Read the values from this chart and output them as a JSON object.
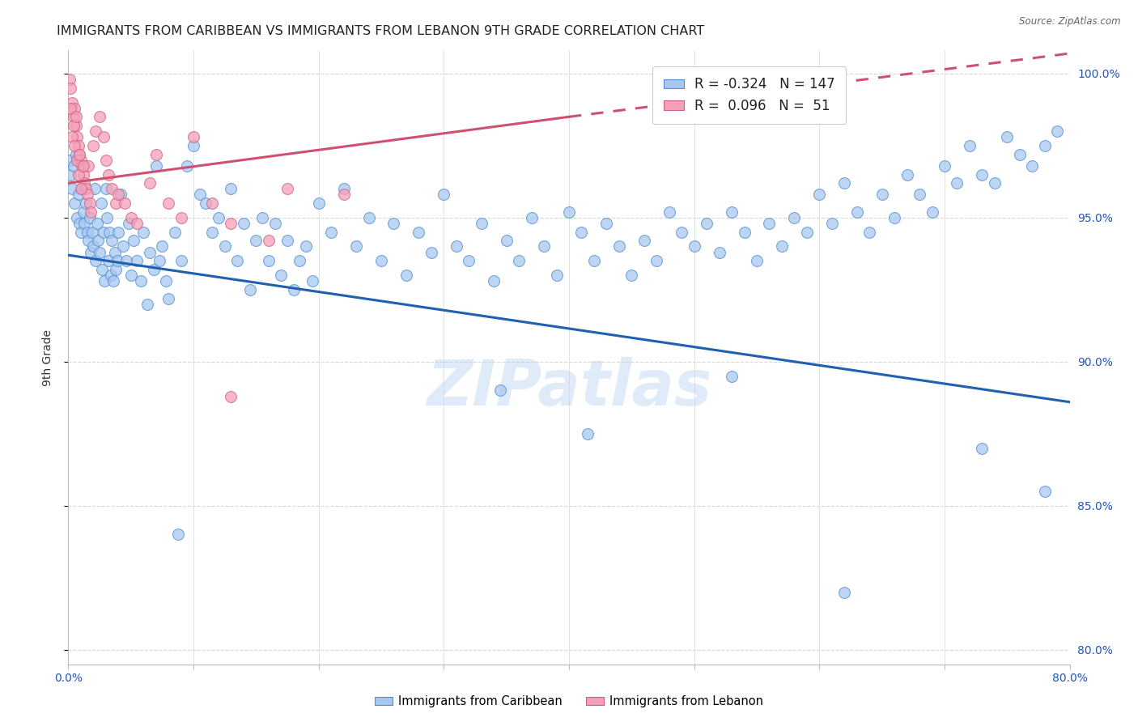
{
  "title": "IMMIGRANTS FROM CARIBBEAN VS IMMIGRANTS FROM LEBANON 9TH GRADE CORRELATION CHART",
  "source": "Source: ZipAtlas.com",
  "ylabel": "9th Grade",
  "xlim": [
    0.0,
    0.8
  ],
  "ylim": [
    0.795,
    1.008
  ],
  "yticks": [
    0.8,
    0.85,
    0.9,
    0.95,
    1.0
  ],
  "yticklabels": [
    "80.0%",
    "85.0%",
    "90.0%",
    "95.0%",
    "100.0%"
  ],
  "legend_r_blue": "-0.324",
  "legend_n_blue": "147",
  "legend_r_pink": "0.096",
  "legend_n_pink": "51",
  "blue_color": "#a8c8f0",
  "pink_color": "#f4a0b8",
  "blue_edge_color": "#5090d0",
  "pink_edge_color": "#d06080",
  "blue_line_color": "#2060b0",
  "pink_line_color": "#d05070",
  "watermark": "ZIPatlas",
  "blue_scatter_x": [
    0.001,
    0.002,
    0.003,
    0.004,
    0.005,
    0.006,
    0.007,
    0.008,
    0.009,
    0.01,
    0.011,
    0.012,
    0.013,
    0.014,
    0.015,
    0.016,
    0.017,
    0.018,
    0.019,
    0.02,
    0.021,
    0.022,
    0.023,
    0.024,
    0.025,
    0.026,
    0.027,
    0.028,
    0.029,
    0.03,
    0.031,
    0.032,
    0.033,
    0.034,
    0.035,
    0.036,
    0.037,
    0.038,
    0.039,
    0.04,
    0.042,
    0.044,
    0.046,
    0.048,
    0.05,
    0.052,
    0.055,
    0.058,
    0.06,
    0.063,
    0.065,
    0.068,
    0.07,
    0.073,
    0.075,
    0.078,
    0.08,
    0.085,
    0.09,
    0.095,
    0.1,
    0.105,
    0.11,
    0.115,
    0.12,
    0.125,
    0.13,
    0.135,
    0.14,
    0.145,
    0.15,
    0.155,
    0.16,
    0.165,
    0.17,
    0.175,
    0.18,
    0.185,
    0.19,
    0.195,
    0.2,
    0.21,
    0.22,
    0.23,
    0.24,
    0.25,
    0.26,
    0.27,
    0.28,
    0.29,
    0.3,
    0.31,
    0.32,
    0.33,
    0.34,
    0.35,
    0.36,
    0.37,
    0.38,
    0.39,
    0.4,
    0.41,
    0.42,
    0.43,
    0.44,
    0.45,
    0.46,
    0.47,
    0.48,
    0.49,
    0.5,
    0.51,
    0.52,
    0.53,
    0.54,
    0.55,
    0.56,
    0.57,
    0.58,
    0.59,
    0.6,
    0.61,
    0.62,
    0.63,
    0.64,
    0.65,
    0.66,
    0.67,
    0.68,
    0.69,
    0.7,
    0.71,
    0.72,
    0.73,
    0.74,
    0.75,
    0.76,
    0.77,
    0.78,
    0.79,
    0.345,
    0.53,
    0.62,
    0.73,
    0.78,
    0.415,
    0.088
  ],
  "blue_scatter_y": [
    0.97,
    0.965,
    0.96,
    0.968,
    0.955,
    0.972,
    0.95,
    0.958,
    0.948,
    0.945,
    0.96,
    0.952,
    0.948,
    0.955,
    0.945,
    0.942,
    0.95,
    0.938,
    0.945,
    0.94,
    0.96,
    0.935,
    0.948,
    0.942,
    0.938,
    0.955,
    0.932,
    0.945,
    0.928,
    0.96,
    0.95,
    0.935,
    0.945,
    0.93,
    0.942,
    0.928,
    0.938,
    0.932,
    0.935,
    0.945,
    0.958,
    0.94,
    0.935,
    0.948,
    0.93,
    0.942,
    0.935,
    0.928,
    0.945,
    0.92,
    0.938,
    0.932,
    0.968,
    0.935,
    0.94,
    0.928,
    0.922,
    0.945,
    0.935,
    0.968,
    0.975,
    0.958,
    0.955,
    0.945,
    0.95,
    0.94,
    0.96,
    0.935,
    0.948,
    0.925,
    0.942,
    0.95,
    0.935,
    0.948,
    0.93,
    0.942,
    0.925,
    0.935,
    0.94,
    0.928,
    0.955,
    0.945,
    0.96,
    0.94,
    0.95,
    0.935,
    0.948,
    0.93,
    0.945,
    0.938,
    0.958,
    0.94,
    0.935,
    0.948,
    0.928,
    0.942,
    0.935,
    0.95,
    0.94,
    0.93,
    0.952,
    0.945,
    0.935,
    0.948,
    0.94,
    0.93,
    0.942,
    0.935,
    0.952,
    0.945,
    0.94,
    0.948,
    0.938,
    0.952,
    0.945,
    0.935,
    0.948,
    0.94,
    0.95,
    0.945,
    0.958,
    0.948,
    0.962,
    0.952,
    0.945,
    0.958,
    0.95,
    0.965,
    0.958,
    0.952,
    0.968,
    0.962,
    0.975,
    0.965,
    0.962,
    0.978,
    0.972,
    0.968,
    0.975,
    0.98,
    0.89,
    0.895,
    0.82,
    0.87,
    0.855,
    0.875,
    0.84
  ],
  "pink_scatter_x": [
    0.001,
    0.002,
    0.003,
    0.004,
    0.005,
    0.006,
    0.007,
    0.008,
    0.009,
    0.01,
    0.011,
    0.012,
    0.013,
    0.014,
    0.015,
    0.016,
    0.017,
    0.018,
    0.02,
    0.022,
    0.025,
    0.028,
    0.03,
    0.032,
    0.035,
    0.038,
    0.04,
    0.045,
    0.05,
    0.055,
    0.065,
    0.07,
    0.08,
    0.09,
    0.1,
    0.115,
    0.13,
    0.16,
    0.175,
    0.22,
    0.002,
    0.003,
    0.004,
    0.005,
    0.006,
    0.007,
    0.008,
    0.009,
    0.01,
    0.012,
    0.13
  ],
  "pink_scatter_y": [
    0.998,
    0.995,
    0.99,
    0.985,
    0.988,
    0.982,
    0.978,
    0.975,
    0.972,
    0.97,
    0.968,
    0.965,
    0.962,
    0.96,
    0.958,
    0.968,
    0.955,
    0.952,
    0.975,
    0.98,
    0.985,
    0.978,
    0.97,
    0.965,
    0.96,
    0.955,
    0.958,
    0.955,
    0.95,
    0.948,
    0.962,
    0.972,
    0.955,
    0.95,
    0.978,
    0.955,
    0.948,
    0.942,
    0.96,
    0.958,
    0.988,
    0.978,
    0.982,
    0.975,
    0.985,
    0.97,
    0.965,
    0.972,
    0.96,
    0.968,
    0.888
  ],
  "blue_line_x0": 0.0,
  "blue_line_x1": 0.8,
  "blue_line_y0": 0.937,
  "blue_line_y1": 0.886,
  "pink_line_solid_x0": 0.0,
  "pink_line_solid_x1": 0.4,
  "pink_line_solid_y0": 0.962,
  "pink_line_solid_y1": 0.985,
  "pink_line_dash_x0": 0.4,
  "pink_line_dash_x1": 0.8,
  "pink_line_dash_y0": 0.985,
  "pink_line_dash_y1": 1.007,
  "background_color": "#ffffff",
  "grid_color": "#d8d8d8",
  "title_fontsize": 11.5,
  "axis_label_fontsize": 10,
  "tick_fontsize": 10,
  "legend_fontsize": 12
}
